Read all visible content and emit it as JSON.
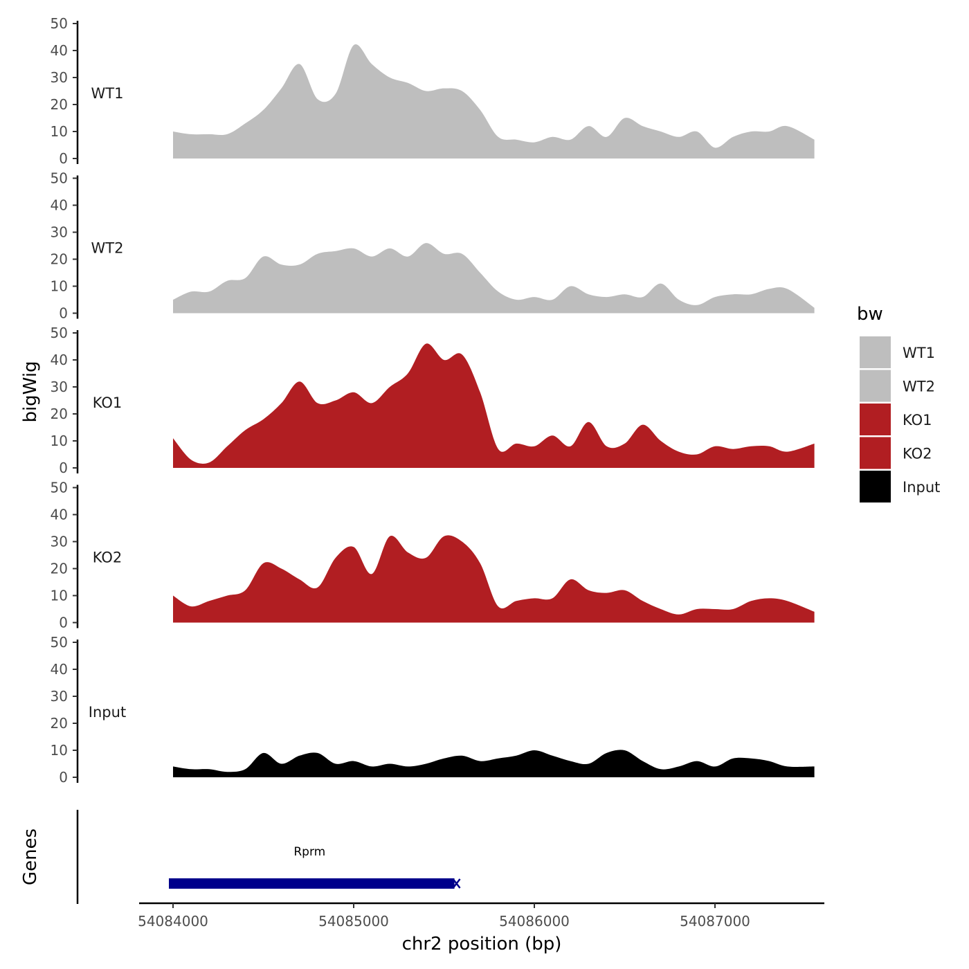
{
  "chart_data": {
    "type": "area",
    "ylabel": "bigWig",
    "xlabel": "chr2 position (bp)",
    "genes_label": "Genes",
    "ylim": [
      0,
      50
    ],
    "y_ticks": [
      "0",
      "10",
      "20",
      "30",
      "40",
      "50"
    ],
    "xlim": [
      54083800,
      54087730
    ],
    "x_ticks": [
      {
        "value": 54084000,
        "label": "54084000"
      },
      {
        "value": 54085000,
        "label": "54085000"
      },
      {
        "value": 54086000,
        "label": "54086000"
      },
      {
        "value": 54087000,
        "label": "54087000"
      }
    ],
    "x": [
      54084000,
      54084100,
      54084200,
      54084300,
      54084400,
      54084500,
      54084600,
      54084700,
      54084800,
      54084900,
      54085000,
      54085100,
      54085200,
      54085300,
      54085400,
      54085500,
      54085600,
      54085700,
      54085800,
      54085900,
      54086000,
      54086100,
      54086200,
      54086300,
      54086400,
      54086500,
      54086600,
      54086700,
      54086800,
      54086900,
      54087000,
      54087100,
      54087200,
      54087300,
      54087400,
      54087550
    ],
    "series": [
      {
        "name": "WT1",
        "color": "#bebebe",
        "values": [
          10,
          9,
          9,
          9,
          13,
          18,
          26,
          35,
          22,
          24,
          42,
          35,
          30,
          28,
          25,
          26,
          25,
          18,
          8,
          7,
          6,
          8,
          7,
          12,
          8,
          15,
          12,
          10,
          8,
          10,
          4,
          8,
          10,
          10,
          12,
          7
        ]
      },
      {
        "name": "WT2",
        "color": "#bebebe",
        "values": [
          5,
          8,
          8,
          12,
          13,
          21,
          18,
          18,
          22,
          23,
          24,
          21,
          24,
          21,
          26,
          22,
          22,
          15,
          8,
          5,
          6,
          5,
          10,
          7,
          6,
          7,
          6,
          11,
          5,
          3,
          6,
          7,
          7,
          9,
          9,
          2
        ]
      },
      {
        "name": "KO1",
        "color": "#b11e22",
        "values": [
          11,
          3,
          2,
          8,
          14,
          18,
          24,
          32,
          24,
          25,
          28,
          24,
          30,
          35,
          46,
          40,
          42,
          28,
          7,
          9,
          8,
          12,
          8,
          17,
          8,
          9,
          16,
          10,
          6,
          5,
          8,
          7,
          8,
          8,
          6,
          9
        ]
      },
      {
        "name": "KO2",
        "color": "#b11e22",
        "values": [
          10,
          6,
          8,
          10,
          12,
          22,
          20,
          16,
          13,
          24,
          28,
          18,
          32,
          26,
          24,
          32,
          30,
          22,
          6,
          8,
          9,
          9,
          16,
          12,
          11,
          12,
          8,
          5,
          3,
          5,
          5,
          5,
          8,
          9,
          8,
          4
        ]
      },
      {
        "name": "Input",
        "color": "#000000",
        "values": [
          4,
          3,
          3,
          2,
          3,
          9,
          5,
          8,
          9,
          5,
          6,
          4,
          5,
          4,
          5,
          7,
          8,
          6,
          7,
          8,
          10,
          8,
          6,
          5,
          9,
          10,
          6,
          3,
          4,
          6,
          4,
          7,
          7,
          6,
          4,
          4
        ]
      }
    ],
    "legend": {
      "title": "bw",
      "position": "right",
      "entries": [
        {
          "label": "WT1",
          "color": "#bebebe"
        },
        {
          "label": "WT2",
          "color": "#bebebe"
        },
        {
          "label": "KO1",
          "color": "#b11e22"
        },
        {
          "label": "KO2",
          "color": "#b11e22"
        },
        {
          "label": "Input",
          "color": "#000000"
        }
      ]
    },
    "genes": [
      {
        "name": "Rprm",
        "start": 54084000,
        "end": 54085550,
        "color": "#00008b"
      }
    ],
    "grid": false
  }
}
